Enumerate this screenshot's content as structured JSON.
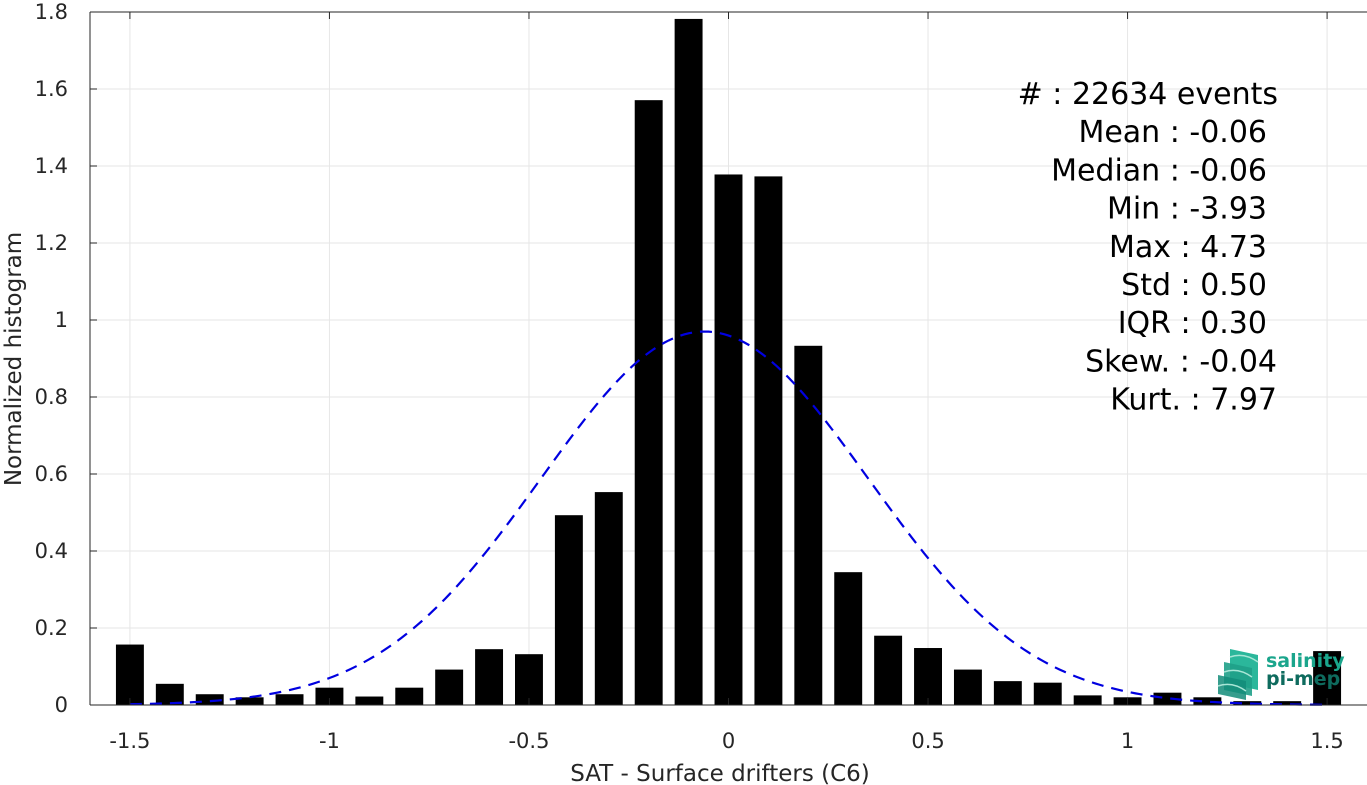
{
  "chart_data": {
    "type": "bar",
    "xlabel": "SAT - Surface drifters (C6)",
    "ylabel": "Normalized histogram",
    "xlim": [
      -1.6,
      1.6
    ],
    "ylim": [
      0,
      1.8
    ],
    "xticks": [
      -1.5,
      -1,
      -0.5,
      0,
      0.5,
      1,
      1.5
    ],
    "xtick_labels": [
      "-1.5",
      "-1",
      "-0.5",
      "0",
      "0.5",
      "1",
      "1.5"
    ],
    "yticks": [
      0,
      0.2,
      0.4,
      0.6,
      0.8,
      1,
      1.2,
      1.4,
      1.6,
      1.8
    ],
    "ytick_labels": [
      "0",
      "0.2",
      "0.4",
      "0.6",
      "0.8",
      "1",
      "1.2",
      "1.4",
      "1.6",
      "1.8"
    ],
    "grid": true,
    "bar_color": "#000000",
    "fit_color": "#0000e0",
    "bins": [
      {
        "x": -1.5,
        "value": 0.157
      },
      {
        "x": -1.4,
        "value": 0.055
      },
      {
        "x": -1.3,
        "value": 0.028
      },
      {
        "x": -1.2,
        "value": 0.02
      },
      {
        "x": -1.1,
        "value": 0.028
      },
      {
        "x": -1.0,
        "value": 0.045
      },
      {
        "x": -0.9,
        "value": 0.022
      },
      {
        "x": -0.8,
        "value": 0.045
      },
      {
        "x": -0.7,
        "value": 0.092
      },
      {
        "x": -0.6,
        "value": 0.145
      },
      {
        "x": -0.5,
        "value": 0.132
      },
      {
        "x": -0.4,
        "value": 0.493
      },
      {
        "x": -0.3,
        "value": 0.553
      },
      {
        "x": -0.2,
        "value": 1.571
      },
      {
        "x": -0.1,
        "value": 1.782
      },
      {
        "x": 0.0,
        "value": 1.378
      },
      {
        "x": 0.1,
        "value": 1.373
      },
      {
        "x": 0.2,
        "value": 0.933
      },
      {
        "x": 0.3,
        "value": 0.345
      },
      {
        "x": 0.4,
        "value": 0.18
      },
      {
        "x": 0.5,
        "value": 0.148
      },
      {
        "x": 0.6,
        "value": 0.092
      },
      {
        "x": 0.7,
        "value": 0.062
      },
      {
        "x": 0.8,
        "value": 0.058
      },
      {
        "x": 0.9,
        "value": 0.025
      },
      {
        "x": 1.0,
        "value": 0.02
      },
      {
        "x": 1.1,
        "value": 0.032
      },
      {
        "x": 1.2,
        "value": 0.02
      },
      {
        "x": 1.3,
        "value": 0.01
      },
      {
        "x": 1.4,
        "value": 0.01
      },
      {
        "x": 1.5,
        "value": 0.14
      }
    ],
    "fit": {
      "type": "gaussian",
      "mean": -0.06,
      "std": 0.41,
      "peak": 0.97,
      "x_range": [
        -1.5,
        1.5
      ],
      "style": "dashed"
    },
    "stats": [
      {
        "label": "#  : 22634 events"
      },
      {
        "label": "Mean : -0.06"
      },
      {
        "label": "Median : -0.06"
      },
      {
        "label": "Min : -3.93"
      },
      {
        "label": "Max : 4.73"
      },
      {
        "label": "Std : 0.50"
      },
      {
        "label": "IQR : 0.30"
      },
      {
        "label": "Skew. : -0.04"
      },
      {
        "label": "Kurt. : 7.97"
      }
    ]
  },
  "logo": {
    "line1": "salinity",
    "line2": "pi-mep",
    "color1": "#1aa58c",
    "color2": "#0e6b5e"
  }
}
